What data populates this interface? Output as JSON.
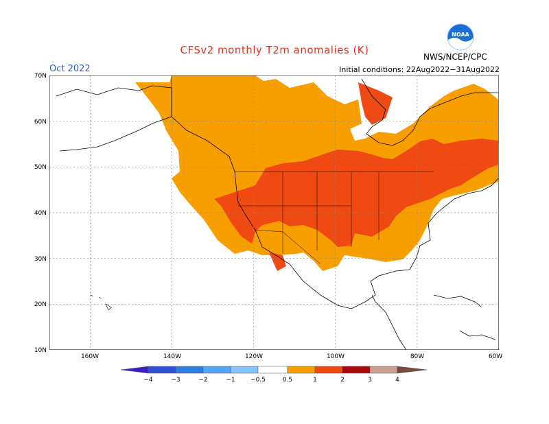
{
  "header": {
    "title": "CFSv2 monthly T2m anomalies (K)",
    "period": "Oct 2022",
    "initial_conditions": "Initial conditions: 22Aug2022−31Aug2022",
    "agency": "NWS/NCEP/CPC",
    "logo_icon": "noaa-logo-icon",
    "logo_text": "NOAA"
  },
  "map": {
    "lat_range": [
      10,
      70
    ],
    "lon_range": [
      -170,
      -60
    ],
    "lat_labels": [
      "70N",
      "60N",
      "50N",
      "40N",
      "30N",
      "20N",
      "10N"
    ],
    "lon_labels": [
      "160W",
      "140W",
      "120W",
      "100W",
      "80W",
      "60W"
    ],
    "grid": true,
    "colors": {
      "anomaly_0_5_to_1": "#f79f00",
      "anomaly_1_to_2": "#f04a14",
      "coastline": "#000000",
      "gridline": "#8a8a8a"
    }
  },
  "colorbar": {
    "labels": [
      "−4",
      "−3",
      "−2",
      "−1",
      "−0.5",
      "0.5",
      "1",
      "2",
      "3",
      "4"
    ],
    "colors": [
      "#3a1ec8",
      "#2f50d4",
      "#2f7fe0",
      "#54a4f4",
      "#84c4fc",
      "#ffffff",
      "#f79f00",
      "#f04a14",
      "#a80808",
      "#c8a090",
      "#7a4a3a"
    ]
  }
}
